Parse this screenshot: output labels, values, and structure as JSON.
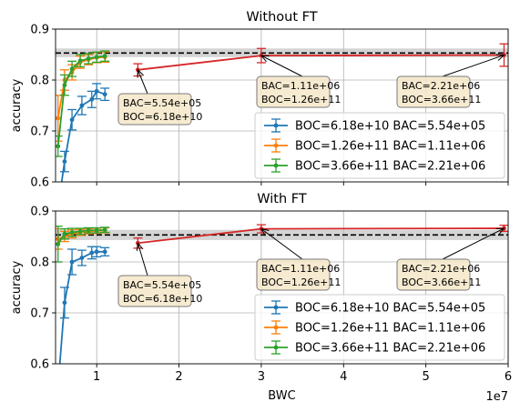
{
  "chart_data": [
    {
      "type": "line",
      "title": "Without FT",
      "xlabel": "",
      "ylabel": "accuracy",
      "xlim": [
        5000000,
        60000000
      ],
      "ylim": [
        0.6,
        0.9
      ],
      "x_ticks": [
        10000000,
        20000000,
        30000000,
        40000000,
        50000000,
        60000000
      ],
      "x_tick_labels": [
        "",
        "",
        "",
        "",
        "",
        ""
      ],
      "y_ticks": [
        0.6,
        0.7,
        0.8,
        0.9
      ],
      "y_tick_labels": [
        "0.6",
        "0.7",
        "0.8",
        "0.9"
      ],
      "grid": true,
      "legend_position": "lower-right",
      "reference_line": {
        "y": 0.853,
        "band": [
          0.845,
          0.862
        ],
        "style": "dashed",
        "color": "#000000"
      },
      "series": [
        {
          "name": "BOC=6.18e+10 BAC=5.54e+05",
          "color": "#1f77b4",
          "x": [
            5300000,
            6100000,
            7000000,
            8200000,
            9400000,
            10000000,
            11000000
          ],
          "y": [
            0.55,
            0.64,
            0.722,
            0.75,
            0.762,
            0.778,
            0.772
          ],
          "err": [
            0.02,
            0.02,
            0.02,
            0.018,
            0.016,
            0.015,
            0.012
          ]
        },
        {
          "name": "BOC=1.26e+11 BAC=1.11e+06",
          "color": "#ff7f0e",
          "x": [
            5300000,
            6100000,
            7000000,
            8000000,
            9000000,
            10000000,
            11000000
          ],
          "y": [
            0.725,
            0.8,
            0.815,
            0.835,
            0.84,
            0.844,
            0.845
          ],
          "err": [
            0.045,
            0.02,
            0.015,
            0.012,
            0.01,
            0.01,
            0.01
          ]
        },
        {
          "name": "BOC=3.66e+11 BAC=2.21e+06",
          "color": "#2ca02c",
          "x": [
            5300000,
            6100000,
            7000000,
            8000000,
            9000000,
            10000000,
            11000000
          ],
          "y": [
            0.67,
            0.79,
            0.822,
            0.838,
            0.842,
            0.845,
            0.847
          ],
          "err": [
            0.02,
            0.02,
            0.015,
            0.012,
            0.01,
            0.01,
            0.01
          ]
        },
        {
          "color": "#d62728",
          "x": [
            15000000,
            30000000,
            59500000
          ],
          "y": [
            0.82,
            0.848,
            0.849
          ],
          "err": [
            0.012,
            0.014,
            0.022
          ]
        }
      ],
      "annotations": [
        {
          "text": [
            "BAC=5.54e+05",
            "BOC=6.18e+10"
          ],
          "x": 15000000,
          "y": 0.82
        },
        {
          "text": [
            "BAC=1.11e+06",
            "BOC=1.26e+11"
          ],
          "x": 30000000,
          "y": 0.848
        },
        {
          "text": [
            "BAC=2.21e+06",
            "BOC=3.66e+11"
          ],
          "x": 59500000,
          "y": 0.849
        }
      ]
    },
    {
      "type": "line",
      "title": "With FT",
      "xlabel": "BWC",
      "ylabel": "accuracy",
      "xlim": [
        5000000,
        60000000
      ],
      "ylim": [
        0.6,
        0.9
      ],
      "x_ticks": [
        10000000,
        20000000,
        30000000,
        40000000,
        50000000,
        60000000
      ],
      "x_tick_labels": [
        "1",
        "2",
        "3",
        "4",
        "5",
        "6"
      ],
      "x_offset_label": "1e7",
      "y_ticks": [
        0.6,
        0.7,
        0.8,
        0.9
      ],
      "y_tick_labels": [
        "0.6",
        "0.7",
        "0.8",
        "0.9"
      ],
      "grid": true,
      "legend_position": "lower-right",
      "reference_line": {
        "y": 0.853,
        "band": [
          0.843,
          0.863
        ],
        "style": "dashed",
        "color": "#000000"
      },
      "series": [
        {
          "name": "BOC=6.18e+10 BAC=5.54e+05",
          "color": "#1f77b4",
          "x": [
            5300000,
            6100000,
            7000000,
            8200000,
            9400000,
            10000000,
            11000000
          ],
          "y": [
            0.555,
            0.72,
            0.8,
            0.808,
            0.818,
            0.82,
            0.82
          ],
          "err": [
            0.03,
            0.03,
            0.025,
            0.015,
            0.012,
            0.01,
            0.008
          ]
        },
        {
          "name": "BOC=1.26e+11 BAC=1.11e+06",
          "color": "#ff7f0e",
          "x": [
            5300000,
            6100000,
            7000000,
            8000000,
            9000000,
            10000000,
            11000000
          ],
          "y": [
            0.845,
            0.85,
            0.855,
            0.858,
            0.86,
            0.861,
            0.862
          ],
          "err": [
            0.02,
            0.01,
            0.008,
            0.006,
            0.005,
            0.005,
            0.005
          ]
        },
        {
          "name": "BOC=3.66e+11 BAC=2.21e+06",
          "color": "#2ca02c",
          "x": [
            5300000,
            6100000,
            7000000,
            8000000,
            9000000,
            10000000,
            11000000
          ],
          "y": [
            0.835,
            0.855,
            0.858,
            0.86,
            0.862,
            0.862,
            0.863
          ],
          "err": [
            0.035,
            0.01,
            0.008,
            0.006,
            0.005,
            0.005,
            0.005
          ]
        },
        {
          "color": "#d62728",
          "x": [
            15000000,
            30000000,
            59500000
          ],
          "y": [
            0.837,
            0.865,
            0.866
          ],
          "err": [
            0.01,
            0.008,
            0.006
          ]
        }
      ],
      "annotations": [
        {
          "text": [
            "BAC=5.54e+05",
            "BOC=6.18e+10"
          ],
          "x": 15000000,
          "y": 0.837
        },
        {
          "text": [
            "BAC=1.11e+06",
            "BOC=1.26e+11"
          ],
          "x": 30000000,
          "y": 0.865
        },
        {
          "text": [
            "BAC=2.21e+06",
            "BOC=3.66e+11"
          ],
          "x": 59500000,
          "y": 0.866
        }
      ]
    }
  ]
}
